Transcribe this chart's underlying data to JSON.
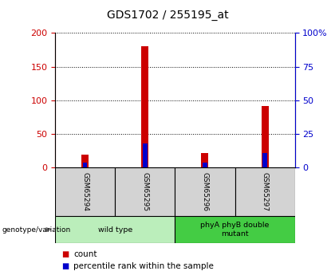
{
  "title": "GDS1702 / 255195_at",
  "samples": [
    "GSM65294",
    "GSM65295",
    "GSM65296",
    "GSM65297"
  ],
  "count_values": [
    20,
    180,
    22,
    92
  ],
  "percentile_values": [
    8,
    36,
    8,
    22
  ],
  "left_ylim": [
    0,
    200
  ],
  "left_yticks": [
    0,
    50,
    100,
    150,
    200
  ],
  "right_ylim": [
    0,
    100
  ],
  "right_yticks": [
    0,
    25,
    50,
    75,
    100
  ],
  "right_yticklabels": [
    "0",
    "25",
    "50",
    "75",
    "100%"
  ],
  "count_color": "#cc0000",
  "percentile_color": "#0000cc",
  "left_tick_color": "#cc0000",
  "right_tick_color": "#0000cc",
  "groups": [
    {
      "label": "wild type",
      "indices": [
        0,
        1
      ],
      "color": "#bbeebb"
    },
    {
      "label": "phyA phyB double\nmutant",
      "indices": [
        2,
        3
      ],
      "color": "#44cc44"
    }
  ],
  "legend_count_label": "count",
  "legend_percentile_label": "percentile rank within the sample",
  "genotype_label": "genotype/variation",
  "count_bar_width": 0.12,
  "percentile_bar_width": 0.07,
  "sample_box_color": "#d3d3d3",
  "background_color": "#ffffff",
  "title_fontsize": 10,
  "tick_fontsize": 8,
  "label_fontsize": 7.5
}
